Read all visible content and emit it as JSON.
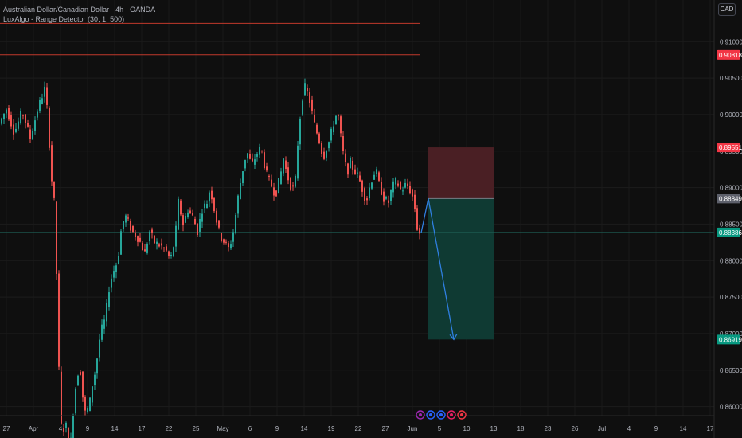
{
  "header": {
    "symbol_line": "Australian Dollar/Canadian Dollar · 4h · OANDA",
    "indicator_line": "LuxAlgo - Range Detector (30, 1, 500)",
    "currency": "CAD"
  },
  "colors": {
    "background": "#0f0f0f",
    "up": "#26a69a",
    "down": "#ef5350",
    "range_line": "#c0392b",
    "stop_zone": "#4a1f24",
    "target_zone": "#0f3a33",
    "entry_label": "#5d606b",
    "projection": "#2f7fe0"
  },
  "chart_data": {
    "type": "candlestick",
    "ylim": [
      0.8557,
      0.9157
    ],
    "y_ticks": [
      "0.91000",
      "0.90500",
      "0.90000",
      "0.89500",
      "0.89000",
      "0.88500",
      "0.88000",
      "0.87500",
      "0.87000",
      "0.86500",
      "0.86000"
    ],
    "x_ticks": [
      "27",
      "Apr",
      "4",
      "9",
      "14",
      "17",
      "22",
      "25",
      "May",
      "6",
      "9",
      "14",
      "19",
      "22",
      "27",
      "Jun",
      "5",
      "10",
      "13",
      "18",
      "23",
      "26",
      "Jul",
      "4",
      "9",
      "14",
      "17"
    ],
    "price_labels": [
      {
        "text": "0.90818",
        "value": 0.90818,
        "color": "#f23645"
      },
      {
        "text": "0.89551",
        "value": 0.89551,
        "color": "#f23645"
      },
      {
        "text": "0.88849",
        "value": 0.88849,
        "color": "#5d606b"
      },
      {
        "text": "0.88386",
        "value": 0.88386,
        "color": "#089981"
      },
      {
        "text": "0.86919",
        "value": 0.86919,
        "color": "#089981"
      }
    ],
    "range_detector_levels": [
      0.9125,
      0.9082
    ],
    "current_price": 0.88386,
    "position": {
      "stop": 0.89551,
      "entry": 0.88849,
      "target": 0.86919
    },
    "path": [
      [
        0,
        0.8985
      ],
      [
        10,
        0.9008
      ],
      [
        20,
        0.8975
      ],
      [
        30,
        0.9005
      ],
      [
        40,
        0.8968
      ],
      [
        50,
        0.901
      ],
      [
        58,
        0.9035
      ],
      [
        62,
        0.9
      ],
      [
        66,
        0.892
      ],
      [
        70,
        0.888
      ],
      [
        74,
        0.875
      ],
      [
        77,
        0.86
      ],
      [
        80,
        0.856
      ],
      [
        84,
        0.858
      ],
      [
        90,
        0.854
      ],
      [
        96,
        0.862
      ],
      [
        102,
        0.866
      ],
      [
        108,
        0.859
      ],
      [
        114,
        0.86
      ],
      [
        118,
        0.863
      ],
      [
        122,
        0.865
      ],
      [
        128,
        0.87
      ],
      [
        134,
        0.872
      ],
      [
        140,
        0.877
      ],
      [
        146,
        0.879
      ],
      [
        150,
        0.88
      ],
      [
        155,
        0.885
      ],
      [
        160,
        0.886
      ],
      [
        168,
        0.884
      ],
      [
        176,
        0.883
      ],
      [
        184,
        0.881
      ],
      [
        190,
        0.884
      ],
      [
        196,
        0.8825
      ],
      [
        204,
        0.882
      ],
      [
        210,
        0.8815
      ],
      [
        216,
        0.88
      ],
      [
        222,
        0.883
      ],
      [
        226,
        0.888
      ],
      [
        232,
        0.885
      ],
      [
        238,
        0.887
      ],
      [
        244,
        0.886
      ],
      [
        250,
        0.884
      ],
      [
        256,
        0.887
      ],
      [
        262,
        0.888
      ],
      [
        266,
        0.89
      ],
      [
        272,
        0.8865
      ],
      [
        278,
        0.8835
      ],
      [
        284,
        0.8825
      ],
      [
        290,
        0.8815
      ],
      [
        296,
        0.8845
      ],
      [
        300,
        0.888
      ],
      [
        306,
        0.892
      ],
      [
        312,
        0.895
      ],
      [
        318,
        0.893
      ],
      [
        324,
        0.8945
      ],
      [
        330,
        0.8955
      ],
      [
        336,
        0.892
      ],
      [
        342,
        0.8905
      ],
      [
        348,
        0.889
      ],
      [
        354,
        0.8915
      ],
      [
        358,
        0.894
      ],
      [
        362,
        0.892
      ],
      [
        366,
        0.8905
      ],
      [
        372,
        0.8895
      ],
      [
        376,
        0.896
      ],
      [
        380,
        0.901
      ],
      [
        384,
        0.904
      ],
      [
        388,
        0.903
      ],
      [
        392,
        0.9015
      ],
      [
        396,
        0.899
      ],
      [
        400,
        0.8975
      ],
      [
        404,
        0.896
      ],
      [
        408,
        0.894
      ],
      [
        412,
        0.8955
      ],
      [
        416,
        0.8965
      ],
      [
        420,
        0.8985
      ],
      [
        426,
        0.9005
      ],
      [
        430,
        0.897
      ],
      [
        434,
        0.894
      ],
      [
        438,
        0.892
      ],
      [
        442,
        0.8935
      ],
      [
        446,
        0.8925
      ],
      [
        452,
        0.8915
      ],
      [
        458,
        0.8895
      ],
      [
        462,
        0.888
      ],
      [
        466,
        0.89
      ],
      [
        470,
        0.8915
      ],
      [
        474,
        0.8925
      ],
      [
        478,
        0.8905
      ],
      [
        484,
        0.8885
      ],
      [
        490,
        0.888
      ],
      [
        494,
        0.89
      ],
      [
        500,
        0.891
      ],
      [
        506,
        0.8895
      ],
      [
        512,
        0.8905
      ],
      [
        518,
        0.8895
      ],
      [
        522,
        0.888
      ],
      [
        526,
        0.8845
      ],
      [
        529,
        0.8838
      ]
    ]
  }
}
